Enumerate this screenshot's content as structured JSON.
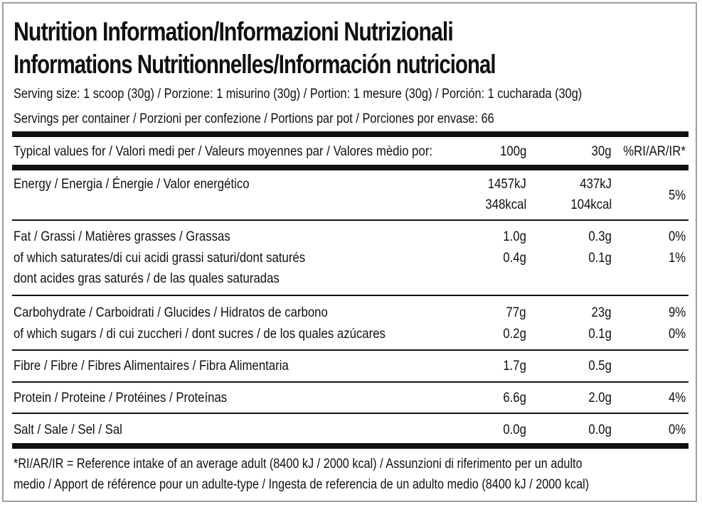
{
  "title_line1": "Nutrition Information/Informazioni Nutrizionali",
  "title_line2": "Informations Nutritionnelles/Información nutricional",
  "serving_size": "Serving size: 1 scoop (30g) / Porzione: 1 misurino (30g) / Portion: 1 mesure (30g) / Porción: 1 cucharada (30g)",
  "servings_per_container": "Servings per container / Porzioni per confezione / Portions par pot / Porciones por envase: 66",
  "header": {
    "label": "Typical values for / Valori medi per / Valeurs moyennes par / Valores mèdio por:",
    "col_100g": "100g",
    "col_30g": "30g",
    "col_ri": "%RI/AR/IR*"
  },
  "rows": {
    "energy": {
      "label": "Energy / Energia / Énergie / Valor energético",
      "v100_kj": "1457kJ",
      "v100_kcal": "348kcal",
      "v30_kj": "437kJ",
      "v30_kcal": "104kcal",
      "ri": "5%"
    },
    "fat": {
      "label": "Fat / Grassi / Matières grasses / Grassas",
      "v100": "1.0g",
      "v30": "0.3g",
      "ri": "0%"
    },
    "saturates": {
      "label1": "of which saturates/di cui acidi grassi saturi/dont saturés",
      "label2": "dont acides gras saturés / de las quales saturadas",
      "v100": "0.4g",
      "v30": "0.1g",
      "ri": "1%"
    },
    "carbohydrate": {
      "label": "Carbohydrate / Carboidrati / Glucides / Hidratos de carbono",
      "v100": "77g",
      "v30": "23g",
      "ri": "9%"
    },
    "sugars": {
      "label": "of which sugars / di cui zuccheri / dont sucres / de los quales azúcares",
      "v100": "0.2g",
      "v30": "0.1g",
      "ri": "0%"
    },
    "fibre": {
      "label": "Fibre / Fibre / Fibres Alimentaires / Fibra Alimentaria",
      "v100": "1.7g",
      "v30": "0.5g",
      "ri": ""
    },
    "protein": {
      "label": "Protein / Proteine / Protéines / Proteínas",
      "v100": "6.6g",
      "v30": "2.0g",
      "ri": "4%"
    },
    "salt": {
      "label": "Salt / Sale / Sel / Sal",
      "v100": "0.0g",
      "v30": "0.0g",
      "ri": "0%"
    }
  },
  "footnote_line1": "*RI/AR/IR = Reference intake of an average adult (8400 kJ / 2000 kcal)  / Assunzioni di riferimento per un adulto",
  "footnote_line2": "medio / Apport de référence pour un adulte-type / Ingesta de referencia de un adulto medio (8400 kJ / 2000 kcal)"
}
